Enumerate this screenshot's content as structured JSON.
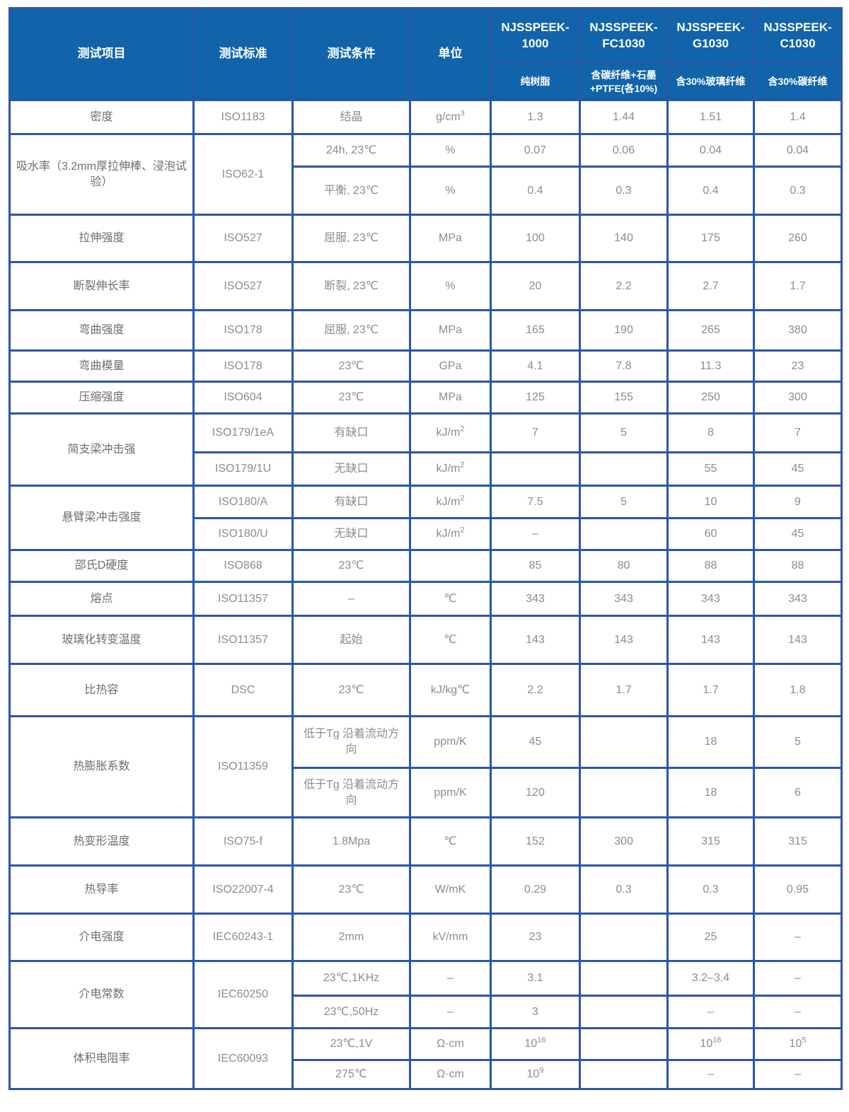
{
  "colors": {
    "header_bg": "#1164a9",
    "border_blue": "#2d55a7",
    "header_text": "#ffffff",
    "value_text": "#8c8c8c",
    "label_text": "#6e6e6e",
    "page_bg": "#ffffff"
  },
  "table": {
    "header": {
      "col_headers": [
        "测试项目",
        "测试标准",
        "测试条件",
        "单位"
      ],
      "products": [
        {
          "name": "NJSSPEEK-1000",
          "desc": "纯树脂"
        },
        {
          "name": "NJSSPEEK-FC1030",
          "desc": "含碳纤维+石墨+PTFE(各10%)"
        },
        {
          "name": "NJSSPEEK-G1030",
          "desc": "含30%玻璃纤维"
        },
        {
          "name": "NJSSPEEK-C1030",
          "desc": "含30%碳纤维"
        }
      ]
    },
    "rows": [
      {
        "item": "密度",
        "standard": "ISO1183",
        "condition": "结晶",
        "unit": {
          "t": "g/cm",
          "sup": "3"
        },
        "values": [
          "1.3",
          "1.44",
          "1.51",
          "1.4"
        ]
      },
      {
        "item": "吸水率（3.2mm厚拉伸棒、浸泡试验）",
        "item_rowspan": 2,
        "standard": "ISO62-1",
        "standard_rowspan": 2,
        "condition": "24h, 23℃",
        "unit": "%",
        "values": [
          "0.07",
          "0.06",
          "0.04",
          "0.04"
        ]
      },
      {
        "condition": "平衡, 23℃",
        "unit": "%",
        "values": [
          "0.4",
          "0.3",
          "0.4",
          "0.3"
        ]
      },
      {
        "item": "拉伸强度",
        "standard": "ISO527",
        "condition": "屈服, 23℃",
        "unit": "MPa",
        "values": [
          "100",
          "140",
          "175",
          "260"
        ]
      },
      {
        "item": "断裂伸长率",
        "standard": "ISO527",
        "condition": "断裂, 23℃",
        "unit": "%",
        "values": [
          "20",
          "2.2",
          "2.7",
          "1.7"
        ]
      },
      {
        "item": "弯曲强度",
        "standard": "ISO178",
        "condition": "屈服, 23℃",
        "unit": "MPa",
        "values": [
          "165",
          "190",
          "265",
          "380"
        ]
      },
      {
        "item": "弯曲模量",
        "standard": "ISO178",
        "condition": "23℃",
        "unit": "GPa",
        "values": [
          "4.1",
          "7.8",
          "11.3",
          "23"
        ]
      },
      {
        "item": "压缩强度",
        "standard": "ISO604",
        "condition": "23℃",
        "unit": "MPa",
        "values": [
          "125",
          "155",
          "250",
          "300"
        ]
      },
      {
        "item": "简支梁冲击强",
        "item_rowspan": 2,
        "standard": "ISO179/1eA",
        "condition": "有缺口",
        "unit": {
          "t": "kJ/m",
          "sup": "2"
        },
        "values": [
          "7",
          "5",
          "8",
          "7"
        ]
      },
      {
        "standard": "ISO179/1U",
        "condition": "无缺口",
        "unit": {
          "t": "kJ/m",
          "sup": "2"
        },
        "values": [
          "",
          "",
          "55",
          "45"
        ]
      },
      {
        "item": "悬臂梁冲击强度",
        "item_rowspan": 2,
        "standard": "ISO180/A",
        "condition": "有缺口",
        "unit": {
          "t": "kJ/m",
          "sup": "2"
        },
        "values": [
          "7.5",
          "5",
          "10",
          "9"
        ]
      },
      {
        "standard": "ISO180/U",
        "condition": "无缺口",
        "unit": {
          "t": "kJ/m",
          "sup": "2"
        },
        "values": [
          "–",
          "",
          "60",
          "45"
        ]
      },
      {
        "item": "邵氏D硬度",
        "standard": "ISO868",
        "condition": "23℃",
        "unit": "",
        "values": [
          "85",
          "80",
          "88",
          "88"
        ]
      },
      {
        "item": "熔点",
        "standard": "ISO11357",
        "condition": "–",
        "unit": "℃",
        "values": [
          "343",
          "343",
          "343",
          "343"
        ]
      },
      {
        "item": "玻璃化转变温度",
        "standard": "ISO11357",
        "condition": "起始",
        "unit": "℃",
        "values": [
          "143",
          "143",
          "143",
          "143"
        ]
      },
      {
        "item": "比热容",
        "standard": "DSC",
        "condition": "23℃",
        "unit": "kJ/kg℃",
        "values": [
          "2.2",
          "1.7",
          "1.7",
          "1.8"
        ]
      },
      {
        "item": "热膨胀系数",
        "item_rowspan": 2,
        "standard": "ISO11359",
        "standard_rowspan": 2,
        "condition": "低于Tg 沿着流动方向",
        "unit": "ppm/K",
        "values": [
          "45",
          "",
          "18",
          "5"
        ]
      },
      {
        "condition": "低于Tg 沿着流动方向",
        "unit": "ppm/K",
        "values": [
          "120",
          "",
          "18",
          "6"
        ]
      },
      {
        "item": "热变形温度",
        "standard": "ISO75-f",
        "condition": "1.8Mpa",
        "unit": "℃",
        "values": [
          "152",
          "300",
          "315",
          "315"
        ]
      },
      {
        "item": "热导率",
        "standard": "ISO22007-4",
        "condition": "23℃",
        "unit": "W/mK",
        "values": [
          "0.29",
          "0.3",
          "0.3",
          "0.95"
        ]
      },
      {
        "item": "介电强度",
        "standard": "IEC60243-1",
        "condition": "2mm",
        "unit": "kV/mm",
        "values": [
          "23",
          "",
          "25",
          "–"
        ]
      },
      {
        "item": "介电常数",
        "item_rowspan": 2,
        "standard": "IEC60250",
        "standard_rowspan": 2,
        "condition": "23℃,1KHz",
        "unit": "–",
        "values": [
          "3.1",
          "",
          "3.2–3.4",
          "–"
        ]
      },
      {
        "condition": "23℃,50Hz",
        "unit": "–",
        "values": [
          "3",
          "",
          "–",
          "–"
        ]
      },
      {
        "item": "体积电阻率",
        "item_rowspan": 2,
        "standard": "IEC60093",
        "standard_rowspan": 2,
        "condition": "23℃,1V",
        "unit": "Ω·cm",
        "values": [
          {
            "t": "10",
            "sup": "16"
          },
          "",
          {
            "t": "10",
            "sup": "16"
          },
          {
            "t": "10",
            "sup": "5"
          }
        ]
      },
      {
        "condition": "275℃",
        "unit": "Ω·cm",
        "values": [
          {
            "t": "10",
            "sup": "9"
          },
          "",
          "–",
          "–"
        ]
      }
    ]
  }
}
